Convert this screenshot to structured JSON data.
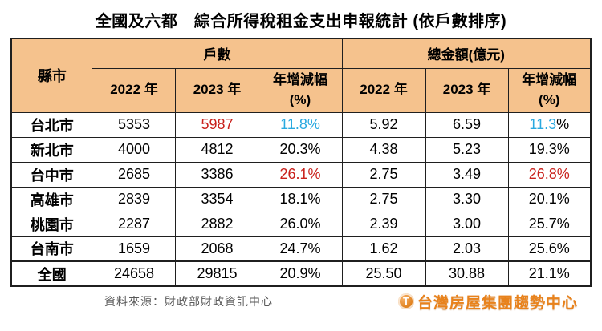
{
  "title": "全國及六都　綜合所得稅租金支出申報統計 (依戶數排序)",
  "colors": {
    "red": "#C9211C",
    "cyan": "#29A9E0",
    "header_bg": "#F5C28D",
    "border": "#1f1f1f",
    "source_gray": "#595959",
    "logo_orange": "#E8821C"
  },
  "table": {
    "corner_header": "縣市",
    "groups": [
      {
        "label": "戶數"
      },
      {
        "label": "總金額(億元)"
      }
    ],
    "sub_columns": [
      {
        "line1": "2022 年",
        "line2": ""
      },
      {
        "line1": "2023 年",
        "line2": ""
      },
      {
        "line1": "年增減幅",
        "line2": "(%)"
      },
      {
        "line1": "2022 年",
        "line2": ""
      },
      {
        "line1": "2023 年",
        "line2": ""
      },
      {
        "line1": "年增減幅",
        "line2": "(%)"
      }
    ],
    "rows": [
      {
        "city": "台北市",
        "total": false,
        "cells": [
          {
            "t": "5353"
          },
          {
            "t": "5987",
            "c": "red"
          },
          {
            "t": "11.8%",
            "c": "cyan"
          },
          {
            "t": "5.92"
          },
          {
            "t": "6.59"
          },
          {
            "t": "11.3",
            "c": "cyan",
            "t2": "%"
          }
        ]
      },
      {
        "city": "新北市",
        "total": false,
        "cells": [
          {
            "t": "4000"
          },
          {
            "t": "4812"
          },
          {
            "t": "20.3%"
          },
          {
            "t": "4.38"
          },
          {
            "t": "5.23"
          },
          {
            "t": "19.3%"
          }
        ]
      },
      {
        "city": "台中市",
        "total": false,
        "cells": [
          {
            "t": "2685"
          },
          {
            "t": "3386"
          },
          {
            "t": "26.1%",
            "c": "red"
          },
          {
            "t": "2.75"
          },
          {
            "t": "3.49"
          },
          {
            "t": "26.8%",
            "c": "red"
          }
        ]
      },
      {
        "city": "高雄市",
        "total": false,
        "cells": [
          {
            "t": "2839"
          },
          {
            "t": "3354"
          },
          {
            "t": "18.1%"
          },
          {
            "t": "2.75"
          },
          {
            "t": "3.30"
          },
          {
            "t": "20.1%"
          }
        ]
      },
      {
        "city": "桃園市",
        "total": false,
        "cells": [
          {
            "t": "2287"
          },
          {
            "t": "2882"
          },
          {
            "t": "26.0%"
          },
          {
            "t": "2.39"
          },
          {
            "t": "3.00"
          },
          {
            "t": "25.7%"
          }
        ]
      },
      {
        "city": "台南市",
        "total": false,
        "cells": [
          {
            "t": "1659"
          },
          {
            "t": "2068"
          },
          {
            "t": "24.7%"
          },
          {
            "t": "1.62"
          },
          {
            "t": "2.03"
          },
          {
            "t": "25.6%"
          }
        ]
      },
      {
        "city": "全國",
        "total": true,
        "cells": [
          {
            "t": "24658"
          },
          {
            "t": "29815"
          },
          {
            "t": "20.9%"
          },
          {
            "t": "25.50"
          },
          {
            "t": "30.88"
          },
          {
            "t": "21.1%"
          }
        ]
      }
    ]
  },
  "footer": {
    "source": "資料來源：財政部財政資訊中心",
    "logo_letter": "T",
    "logo_text": "台灣房屋集團趨勢中心"
  },
  "chart_data": {
    "type": "table",
    "title": "全國及六都 綜合所得稅租金支出申報統計 (依戶數排序)",
    "categories": [
      "台北市",
      "新北市",
      "台中市",
      "高雄市",
      "桃園市",
      "台南市",
      "全國"
    ],
    "series": [
      {
        "name": "戶數 2022年",
        "values": [
          5353,
          4000,
          2685,
          2839,
          2287,
          1659,
          24658
        ]
      },
      {
        "name": "戶數 2023年",
        "values": [
          5987,
          4812,
          3386,
          3354,
          2882,
          2068,
          29815
        ]
      },
      {
        "name": "戶數 年增減幅(%)",
        "values": [
          11.8,
          20.3,
          26.1,
          18.1,
          26.0,
          24.7,
          20.9
        ]
      },
      {
        "name": "總金額(億元) 2022年",
        "values": [
          5.92,
          4.38,
          2.75,
          2.75,
          2.39,
          1.62,
          25.5
        ]
      },
      {
        "name": "總金額(億元) 2023年",
        "values": [
          6.59,
          5.23,
          3.49,
          3.3,
          3.0,
          2.03,
          30.88
        ]
      },
      {
        "name": "總金額 年增減幅(%)",
        "values": [
          11.3,
          19.3,
          26.8,
          20.1,
          25.7,
          25.6,
          21.1
        ]
      }
    ],
    "source": "資料來源：財政部財政資訊中心"
  }
}
